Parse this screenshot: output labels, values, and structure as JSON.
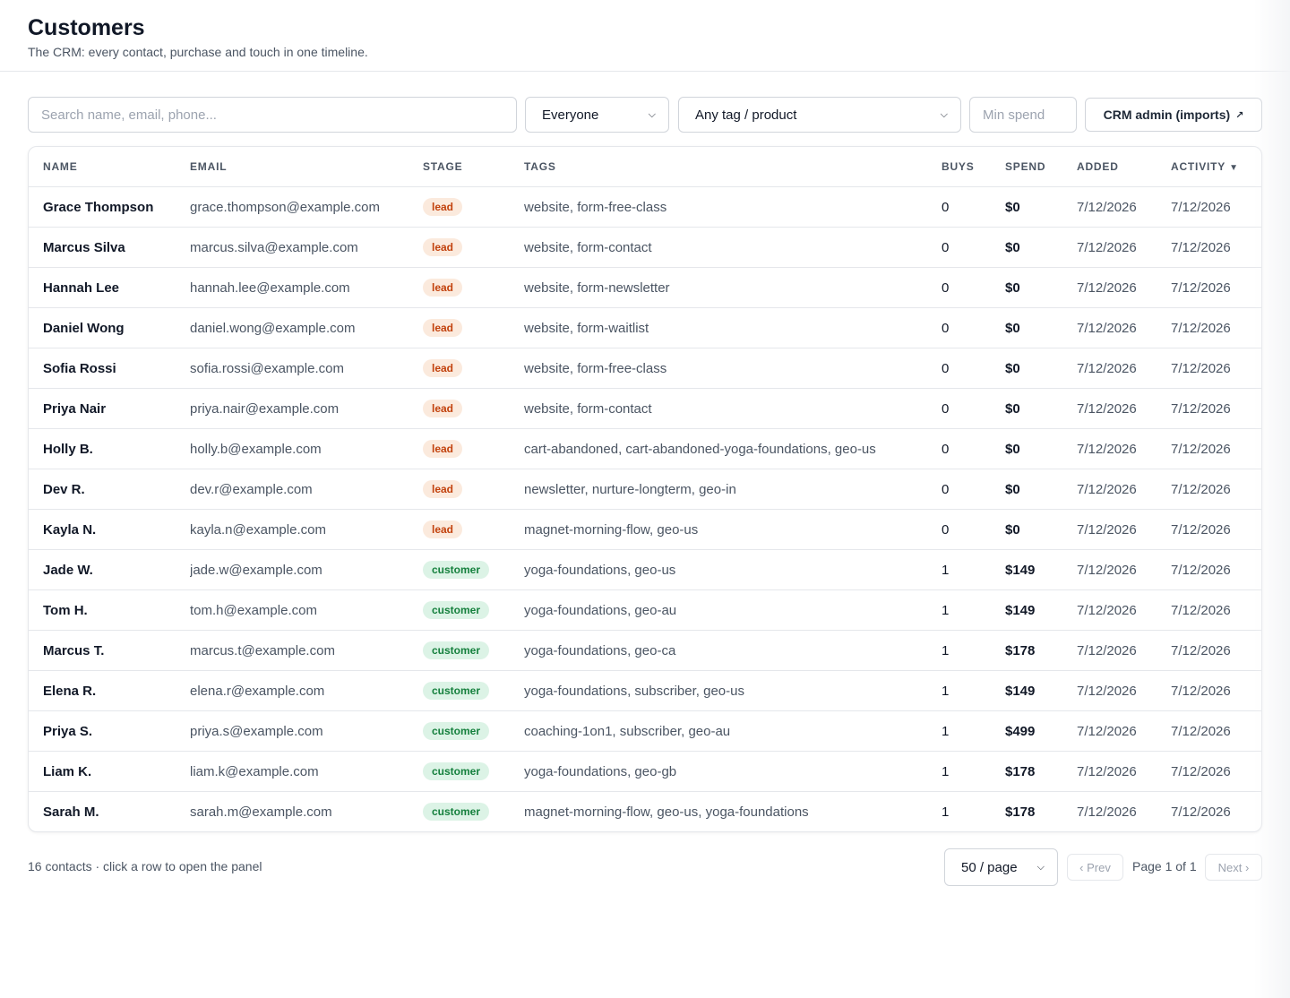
{
  "header": {
    "title": "Customers",
    "subtitle": "The CRM: every contact, purchase and touch in one timeline."
  },
  "filters": {
    "search_placeholder": "Search name, email, phone...",
    "audience_value": "Everyone",
    "tag_value": "Any tag / product",
    "min_spend_placeholder": "Min spend",
    "admin_label": "CRM admin (imports)",
    "admin_icon": "external-link-icon"
  },
  "table": {
    "columns": {
      "name": "NAME",
      "email": "EMAIL",
      "stage": "STAGE",
      "tags": "TAGS",
      "buys": "BUYS",
      "spend": "SPEND",
      "added": "ADDED",
      "activity": "ACTIVITY"
    },
    "sort": {
      "column": "activity",
      "direction": "desc"
    },
    "rows": [
      {
        "name": "Grace Thompson",
        "email": "grace.thompson@example.com",
        "stage": "lead",
        "tags": "website, form-free-class",
        "buys": "0",
        "spend": "$0",
        "added": "7/12/2026",
        "activity": "7/12/2026"
      },
      {
        "name": "Marcus Silva",
        "email": "marcus.silva@example.com",
        "stage": "lead",
        "tags": "website, form-contact",
        "buys": "0",
        "spend": "$0",
        "added": "7/12/2026",
        "activity": "7/12/2026"
      },
      {
        "name": "Hannah Lee",
        "email": "hannah.lee@example.com",
        "stage": "lead",
        "tags": "website, form-newsletter",
        "buys": "0",
        "spend": "$0",
        "added": "7/12/2026",
        "activity": "7/12/2026"
      },
      {
        "name": "Daniel Wong",
        "email": "daniel.wong@example.com",
        "stage": "lead",
        "tags": "website, form-waitlist",
        "buys": "0",
        "spend": "$0",
        "added": "7/12/2026",
        "activity": "7/12/2026"
      },
      {
        "name": "Sofia Rossi",
        "email": "sofia.rossi@example.com",
        "stage": "lead",
        "tags": "website, form-free-class",
        "buys": "0",
        "spend": "$0",
        "added": "7/12/2026",
        "activity": "7/12/2026"
      },
      {
        "name": "Priya Nair",
        "email": "priya.nair@example.com",
        "stage": "lead",
        "tags": "website, form-contact",
        "buys": "0",
        "spend": "$0",
        "added": "7/12/2026",
        "activity": "7/12/2026"
      },
      {
        "name": "Holly B.",
        "email": "holly.b@example.com",
        "stage": "lead",
        "tags": "cart-abandoned, cart-abandoned-yoga-foundations, geo-us",
        "buys": "0",
        "spend": "$0",
        "added": "7/12/2026",
        "activity": "7/12/2026"
      },
      {
        "name": "Dev R.",
        "email": "dev.r@example.com",
        "stage": "lead",
        "tags": "newsletter, nurture-longterm, geo-in",
        "buys": "0",
        "spend": "$0",
        "added": "7/12/2026",
        "activity": "7/12/2026"
      },
      {
        "name": "Kayla N.",
        "email": "kayla.n@example.com",
        "stage": "lead",
        "tags": "magnet-morning-flow, geo-us",
        "buys": "0",
        "spend": "$0",
        "added": "7/12/2026",
        "activity": "7/12/2026"
      },
      {
        "name": "Jade W.",
        "email": "jade.w@example.com",
        "stage": "customer",
        "tags": "yoga-foundations, geo-us",
        "buys": "1",
        "spend": "$149",
        "added": "7/12/2026",
        "activity": "7/12/2026"
      },
      {
        "name": "Tom H.",
        "email": "tom.h@example.com",
        "stage": "customer",
        "tags": "yoga-foundations, geo-au",
        "buys": "1",
        "spend": "$149",
        "added": "7/12/2026",
        "activity": "7/12/2026"
      },
      {
        "name": "Marcus T.",
        "email": "marcus.t@example.com",
        "stage": "customer",
        "tags": "yoga-foundations, geo-ca",
        "buys": "1",
        "spend": "$178",
        "added": "7/12/2026",
        "activity": "7/12/2026"
      },
      {
        "name": "Elena R.",
        "email": "elena.r@example.com",
        "stage": "customer",
        "tags": "yoga-foundations, subscriber, geo-us",
        "buys": "1",
        "spend": "$149",
        "added": "7/12/2026",
        "activity": "7/12/2026"
      },
      {
        "name": "Priya S.",
        "email": "priya.s@example.com",
        "stage": "customer",
        "tags": "coaching-1on1, subscriber, geo-au",
        "buys": "1",
        "spend": "$499",
        "added": "7/12/2026",
        "activity": "7/12/2026"
      },
      {
        "name": "Liam K.",
        "email": "liam.k@example.com",
        "stage": "customer",
        "tags": "yoga-foundations, geo-gb",
        "buys": "1",
        "spend": "$178",
        "added": "7/12/2026",
        "activity": "7/12/2026"
      },
      {
        "name": "Sarah M.",
        "email": "sarah.m@example.com",
        "stage": "customer",
        "tags": "magnet-morning-flow, geo-us, yoga-foundations",
        "buys": "1",
        "spend": "$178",
        "added": "7/12/2026",
        "activity": "7/12/2026"
      }
    ]
  },
  "footer": {
    "count_text": "16 contacts · click a row to open the panel",
    "per_page_value": "50 / page",
    "prev_label": "‹ Prev",
    "page_indicator": "Page 1 of 1",
    "next_label": "Next ›"
  },
  "colors": {
    "lead_bg": "#fbeadd",
    "lead_text": "#c2410c",
    "customer_bg": "#dcf3e6",
    "customer_text": "#15803d"
  }
}
